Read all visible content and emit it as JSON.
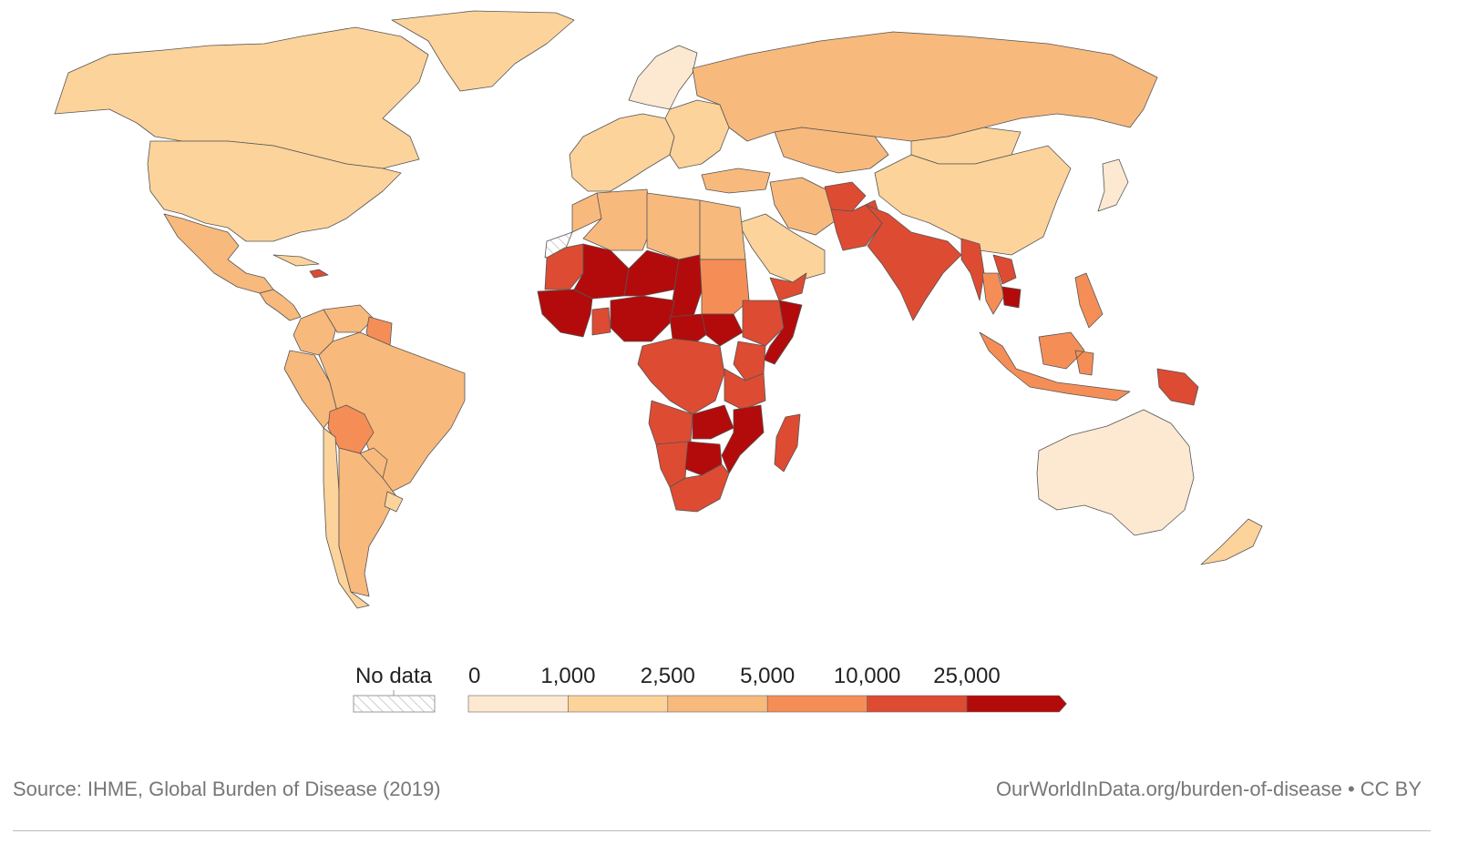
{
  "legend": {
    "no_data_label": "No data",
    "ticks": [
      "0",
      "1,000",
      "2,500",
      "5,000",
      "10,000",
      "25,000"
    ],
    "bins": [
      {
        "min": 0,
        "max": 1000,
        "color": "#fde9d2"
      },
      {
        "min": 1000,
        "max": 2500,
        "color": "#fcd39b"
      },
      {
        "min": 2500,
        "max": 5000,
        "color": "#f8b97d"
      },
      {
        "min": 5000,
        "max": 10000,
        "color": "#f58e56"
      },
      {
        "min": 10000,
        "max": 25000,
        "color": "#dd4b33"
      },
      {
        "min": 25000,
        "max": null,
        "color": "#b30b0b"
      }
    ],
    "no_data_color": "#f2f2f2"
  },
  "footer": {
    "source": "Source: IHME, Global Burden of Disease (2019)",
    "credit": "OurWorldInData.org/burden-of-disease • CC BY"
  },
  "regions": [
    {
      "name": "Canada",
      "bin": 1
    },
    {
      "name": "Greenland",
      "bin": 1
    },
    {
      "name": "United States",
      "bin": 1
    },
    {
      "name": "Mexico",
      "bin": 2
    },
    {
      "name": "Central America",
      "bin": 2
    },
    {
      "name": "Haiti",
      "bin": 4
    },
    {
      "name": "Cuba",
      "bin": 1
    },
    {
      "name": "Venezuela",
      "bin": 2
    },
    {
      "name": "Guyana",
      "bin": 3
    },
    {
      "name": "Colombia",
      "bin": 2
    },
    {
      "name": "Brazil",
      "bin": 2
    },
    {
      "name": "Peru",
      "bin": 2
    },
    {
      "name": "Bolivia",
      "bin": 3
    },
    {
      "name": "Paraguay",
      "bin": 2
    },
    {
      "name": "Argentina",
      "bin": 2
    },
    {
      "name": "Chile",
      "bin": 1
    },
    {
      "name": "Uruguay",
      "bin": 1
    },
    {
      "name": "Western Europe",
      "bin": 1
    },
    {
      "name": "Scandinavia",
      "bin": 0
    },
    {
      "name": "Eastern Europe",
      "bin": 1
    },
    {
      "name": "Russia",
      "bin": 2
    },
    {
      "name": "Kazakhstan",
      "bin": 2
    },
    {
      "name": "Turkey",
      "bin": 2
    },
    {
      "name": "Iran",
      "bin": 2
    },
    {
      "name": "Saudi Arabia",
      "bin": 1
    },
    {
      "name": "Yemen",
      "bin": 4
    },
    {
      "name": "Afghanistan",
      "bin": 4
    },
    {
      "name": "Pakistan",
      "bin": 4
    },
    {
      "name": "India",
      "bin": 4
    },
    {
      "name": "Mongolia",
      "bin": 1
    },
    {
      "name": "China",
      "bin": 1
    },
    {
      "name": "Japan",
      "bin": 0
    },
    {
      "name": "Myanmar",
      "bin": 4
    },
    {
      "name": "Thailand",
      "bin": 3
    },
    {
      "name": "Laos",
      "bin": 4
    },
    {
      "name": "Cambodia",
      "bin": 5
    },
    {
      "name": "Philippines",
      "bin": 3
    },
    {
      "name": "Indonesia",
      "bin": 3
    },
    {
      "name": "Papua New Guinea",
      "bin": 4
    },
    {
      "name": "Australia",
      "bin": 0
    },
    {
      "name": "New Zealand",
      "bin": 1
    },
    {
      "name": "Morocco",
      "bin": 2
    },
    {
      "name": "Western Sahara",
      "bin": -1
    },
    {
      "name": "Algeria",
      "bin": 2
    },
    {
      "name": "Libya",
      "bin": 2
    },
    {
      "name": "Egypt",
      "bin": 2
    },
    {
      "name": "Mauritania",
      "bin": 4
    },
    {
      "name": "Mali",
      "bin": 5
    },
    {
      "name": "Niger",
      "bin": 5
    },
    {
      "name": "Chad",
      "bin": 5
    },
    {
      "name": "Sudan",
      "bin": 3
    },
    {
      "name": "South Sudan",
      "bin": 5
    },
    {
      "name": "West Africa",
      "bin": 5
    },
    {
      "name": "Ghana",
      "bin": 4
    },
    {
      "name": "Nigeria",
      "bin": 5
    },
    {
      "name": "Central African Republic",
      "bin": 5
    },
    {
      "name": "Ethiopia",
      "bin": 4
    },
    {
      "name": "Somalia",
      "bin": 5
    },
    {
      "name": "Kenya",
      "bin": 4
    },
    {
      "name": "DR Congo",
      "bin": 4
    },
    {
      "name": "Angola",
      "bin": 4
    },
    {
      "name": "Tanzania",
      "bin": 4
    },
    {
      "name": "Zambia",
      "bin": 5
    },
    {
      "name": "Mozambique",
      "bin": 5
    },
    {
      "name": "Namibia",
      "bin": 4
    },
    {
      "name": "Botswana",
      "bin": 5
    },
    {
      "name": "South Africa",
      "bin": 4
    },
    {
      "name": "Madagascar",
      "bin": 4
    }
  ]
}
